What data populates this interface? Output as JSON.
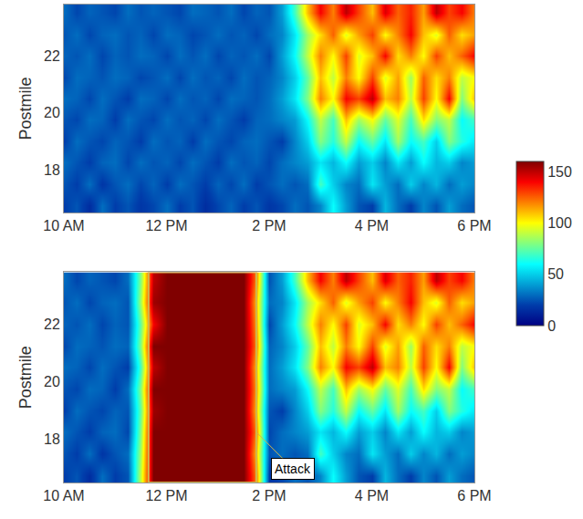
{
  "chart_data": {
    "type": "heatmap",
    "x": [
      10,
      10.25,
      10.5,
      10.75,
      11,
      11.25,
      11.5,
      11.75,
      12,
      12.25,
      12.5,
      12.75,
      13,
      13.25,
      13.5,
      13.75,
      14,
      14.25,
      14.5,
      14.75,
      15,
      15.25,
      15.5,
      15.75,
      16,
      16.25,
      16.5,
      16.75,
      17,
      17.25,
      17.5,
      17.75,
      18
    ],
    "y": [
      16.75,
      17.5,
      18.25,
      19,
      19.75,
      20.5,
      21.25,
      22,
      22.75,
      23.5
    ],
    "xlim": [
      10,
      18
    ],
    "xticks": [
      {
        "value": 10,
        "label": "10 AM"
      },
      {
        "value": 12,
        "label": "12 PM"
      },
      {
        "value": 14,
        "label": "2 PM"
      },
      {
        "value": 16,
        "label": "4 PM"
      },
      {
        "value": 18,
        "label": "6 PM"
      }
    ],
    "ylim": [
      16.5,
      23.8
    ],
    "yticks": [
      18,
      20,
      22
    ],
    "ylabel": "Postmile",
    "zlim": [
      0,
      160
    ],
    "zticks": [
      0,
      50,
      100,
      150
    ],
    "panels": [
      {
        "z": [
          [
            20,
            25,
            15,
            30,
            20,
            25,
            18,
            22,
            30,
            20,
            25,
            15,
            22,
            28,
            20,
            25,
            18,
            22,
            30,
            25,
            35,
            60,
            40,
            25,
            20,
            45,
            30,
            20,
            35,
            25,
            40,
            30,
            25
          ],
          [
            25,
            20,
            30,
            18,
            25,
            30,
            22,
            28,
            20,
            30,
            25,
            20,
            28,
            22,
            30,
            20,
            25,
            30,
            25,
            30,
            70,
            50,
            35,
            30,
            55,
            40,
            30,
            50,
            35,
            45,
            30,
            40,
            35
          ],
          [
            30,
            25,
            20,
            28,
            30,
            22,
            30,
            25,
            28,
            22,
            30,
            25,
            20,
            30,
            25,
            28,
            22,
            30,
            35,
            40,
            55,
            45,
            60,
            40,
            50,
            35,
            55,
            40,
            60,
            45,
            50,
            35,
            40
          ],
          [
            20,
            30,
            25,
            22,
            28,
            25,
            20,
            30,
            25,
            28,
            20,
            30,
            25,
            22,
            28,
            30,
            25,
            20,
            35,
            50,
            80,
            65,
            90,
            60,
            75,
            55,
            85,
            60,
            70,
            50,
            80,
            65,
            55
          ],
          [
            25,
            22,
            30,
            28,
            20,
            30,
            25,
            22,
            30,
            25,
            28,
            22,
            30,
            25,
            20,
            28,
            30,
            35,
            40,
            60,
            90,
            70,
            110,
            85,
            100,
            75,
            95,
            70,
            105,
            80,
            90,
            60,
            70
          ],
          [
            30,
            28,
            22,
            30,
            25,
            20,
            30,
            28,
            22,
            30,
            25,
            28,
            22,
            30,
            28,
            25,
            30,
            40,
            55,
            80,
            120,
            100,
            140,
            130,
            150,
            110,
            120,
            90,
            130,
            100,
            140,
            80,
            110
          ],
          [
            22,
            30,
            28,
            25,
            30,
            28,
            22,
            25,
            30,
            22,
            30,
            25,
            28,
            22,
            30,
            25,
            28,
            35,
            50,
            75,
            110,
            90,
            120,
            100,
            130,
            95,
            115,
            85,
            125,
            105,
            120,
            90,
            100
          ],
          [
            28,
            25,
            30,
            22,
            28,
            25,
            30,
            28,
            22,
            30,
            25,
            30,
            22,
            28,
            25,
            30,
            22,
            40,
            60,
            90,
            120,
            100,
            130,
            95,
            110,
            140,
            105,
            120,
            100,
            130,
            110,
            125,
            140
          ],
          [
            25,
            30,
            22,
            28,
            30,
            25,
            28,
            22,
            30,
            28,
            22,
            25,
            30,
            25,
            28,
            22,
            30,
            35,
            55,
            85,
            105,
            125,
            95,
            115,
            130,
            100,
            120,
            140,
            110,
            95,
            125,
            105,
            115
          ],
          [
            30,
            22,
            28,
            25,
            22,
            30,
            25,
            28,
            25,
            22,
            30,
            28,
            25,
            30,
            22,
            28,
            25,
            40,
            70,
            110,
            140,
            120,
            150,
            130,
            110,
            145,
            125,
            135,
            115,
            150,
            130,
            140,
            120
          ]
        ]
      },
      {
        "z": [
          [
            20,
            25,
            15,
            30,
            20,
            25,
            90,
            160,
            160,
            160,
            160,
            160,
            160,
            160,
            160,
            120,
            18,
            22,
            30,
            25,
            35,
            60,
            40,
            25,
            20,
            45,
            30,
            20,
            35,
            25,
            40,
            30,
            25
          ],
          [
            25,
            20,
            30,
            18,
            25,
            30,
            85,
            160,
            160,
            160,
            160,
            160,
            160,
            160,
            160,
            110,
            25,
            30,
            25,
            30,
            70,
            50,
            35,
            30,
            55,
            40,
            30,
            50,
            35,
            45,
            30,
            40,
            35
          ],
          [
            30,
            25,
            20,
            28,
            30,
            22,
            80,
            160,
            160,
            160,
            160,
            160,
            160,
            160,
            160,
            120,
            22,
            30,
            35,
            40,
            55,
            45,
            60,
            40,
            50,
            35,
            55,
            40,
            60,
            45,
            50,
            35,
            40
          ],
          [
            20,
            30,
            25,
            22,
            28,
            25,
            75,
            155,
            160,
            160,
            160,
            160,
            160,
            160,
            160,
            110,
            25,
            20,
            35,
            50,
            80,
            65,
            90,
            60,
            75,
            55,
            85,
            60,
            70,
            50,
            80,
            65,
            55
          ],
          [
            25,
            22,
            30,
            28,
            20,
            30,
            80,
            160,
            160,
            160,
            160,
            160,
            160,
            160,
            160,
            115,
            30,
            35,
            40,
            60,
            90,
            70,
            110,
            85,
            100,
            75,
            95,
            70,
            105,
            80,
            90,
            60,
            70
          ],
          [
            30,
            28,
            22,
            30,
            25,
            20,
            70,
            150,
            160,
            160,
            160,
            160,
            160,
            160,
            160,
            110,
            30,
            40,
            55,
            80,
            120,
            100,
            140,
            130,
            150,
            110,
            120,
            90,
            130,
            100,
            140,
            80,
            110
          ],
          [
            22,
            30,
            28,
            25,
            30,
            28,
            80,
            160,
            160,
            160,
            160,
            160,
            160,
            160,
            160,
            120,
            28,
            35,
            50,
            75,
            110,
            90,
            120,
            100,
            130,
            95,
            115,
            85,
            125,
            105,
            120,
            90,
            100
          ],
          [
            28,
            25,
            30,
            22,
            28,
            25,
            75,
            140,
            160,
            160,
            160,
            160,
            160,
            160,
            160,
            115,
            22,
            40,
            60,
            90,
            120,
            100,
            130,
            95,
            110,
            140,
            105,
            120,
            100,
            130,
            110,
            125,
            140
          ],
          [
            25,
            30,
            22,
            28,
            30,
            25,
            85,
            155,
            160,
            160,
            160,
            160,
            160,
            160,
            160,
            110,
            30,
            35,
            55,
            85,
            105,
            125,
            95,
            115,
            130,
            100,
            120,
            140,
            110,
            95,
            125,
            105,
            115
          ],
          [
            30,
            22,
            28,
            25,
            22,
            30,
            80,
            150,
            160,
            160,
            160,
            160,
            160,
            160,
            160,
            120,
            25,
            40,
            70,
            110,
            140,
            120,
            150,
            130,
            110,
            145,
            125,
            135,
            115,
            150,
            130,
            140,
            120
          ]
        ],
        "annotations": [
          {
            "text": "Attack",
            "x0": 11.65,
            "x1": 13.75
          }
        ]
      }
    ]
  }
}
